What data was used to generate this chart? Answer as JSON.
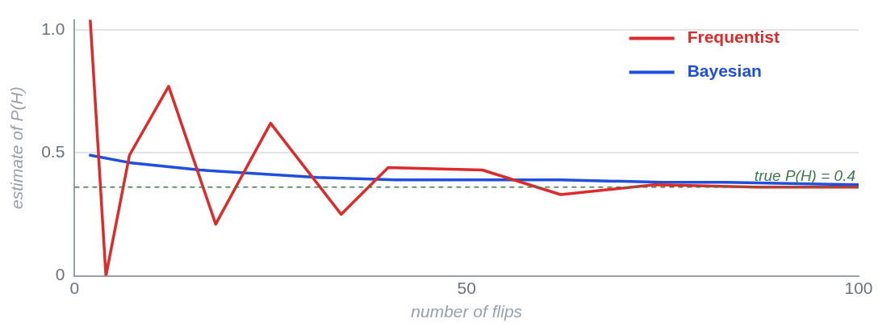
{
  "chart_data": {
    "type": "line",
    "xlabel": "number of flips",
    "ylabel": "estimate of P(H)",
    "xlim": [
      0,
      100
    ],
    "xticks": [
      0,
      50,
      100
    ],
    "ylim": [
      0,
      1.04
    ],
    "yticks": [
      0,
      0.5,
      {
        "value": 1,
        "label": "1.0"
      }
    ],
    "grid": "y",
    "legend": "top right",
    "marker": "none",
    "line_style": "solid",
    "series": [
      {
        "name": "Frequentist",
        "color": "#dd2a2a",
        "x": [
          2,
          4,
          7,
          12,
          18,
          25,
          34,
          40,
          52,
          62,
          74,
          87,
          100
        ],
        "values": [
          1.04,
          0,
          0.49,
          0.77,
          0.21,
          0.62,
          0.25,
          0.44,
          0.43,
          0.33,
          0.37,
          0.36,
          0.36
        ]
      },
      {
        "name": "Bayesian",
        "color": "#1f4fdd",
        "x": [
          2,
          7,
          16,
          31,
          41,
          62,
          75,
          83,
          100
        ],
        "values": [
          0.49,
          0.46,
          0.43,
          0.4,
          0.39,
          0.39,
          0.38,
          0.38,
          0.37
        ]
      }
    ],
    "ref_lines": [
      {
        "axis": "y",
        "value": 0.36,
        "label": "true P(H) = 0.4",
        "color": "#3d7a4a",
        "line_style": "dashed"
      }
    ]
  }
}
